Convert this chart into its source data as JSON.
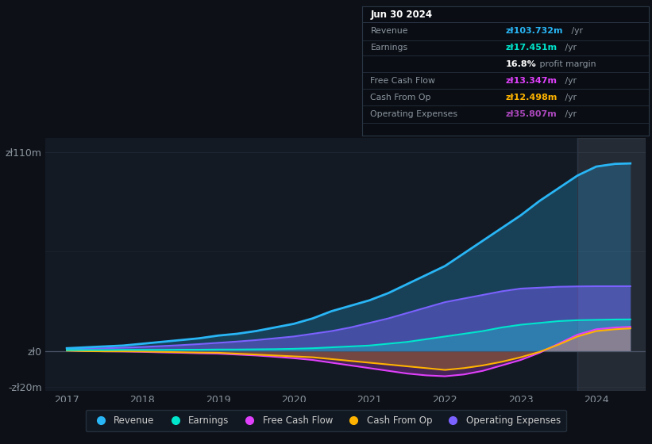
{
  "bg_color": "#0d1117",
  "plot_bg_color": "#131a24",
  "grid_color": "#1e2733",
  "title_box": {
    "date": "Jun 30 2024",
    "rows": [
      {
        "label": "Revenue",
        "value": "zł103.732m",
        "value_color": "#29b6f6",
        "suffix": " /yr"
      },
      {
        "label": "Earnings",
        "value": "zł17.451m",
        "value_color": "#00e5cc",
        "suffix": " /yr"
      },
      {
        "label": "",
        "value": "16.8%",
        "value_color": "#ffffff",
        "suffix": " profit margin"
      },
      {
        "label": "Free Cash Flow",
        "value": "zł13.347m",
        "value_color": "#e040fb",
        "suffix": " /yr"
      },
      {
        "label": "Cash From Op",
        "value": "zł12.498m",
        "value_color": "#ffb300",
        "suffix": " /yr"
      },
      {
        "label": "Operating Expenses",
        "value": "zł35.807m",
        "value_color": "#ab47bc",
        "suffix": " /yr"
      }
    ]
  },
  "x_years": [
    2017.0,
    2017.25,
    2017.5,
    2017.75,
    2018.0,
    2018.25,
    2018.5,
    2018.75,
    2019.0,
    2019.25,
    2019.5,
    2019.75,
    2020.0,
    2020.25,
    2020.5,
    2020.75,
    2021.0,
    2021.25,
    2021.5,
    2021.75,
    2022.0,
    2022.25,
    2022.5,
    2022.75,
    2023.0,
    2023.25,
    2023.5,
    2023.75,
    2024.0,
    2024.25,
    2024.45
  ],
  "revenue": [
    1.5,
    2.0,
    2.5,
    3.0,
    4.0,
    5.0,
    6.0,
    7.0,
    8.5,
    9.5,
    11.0,
    13.0,
    15.0,
    18.0,
    22.0,
    25.0,
    28.0,
    32.0,
    37.0,
    42.0,
    47.0,
    54.0,
    61.0,
    68.0,
    75.0,
    83.0,
    90.0,
    97.0,
    102.0,
    103.5,
    103.732
  ],
  "earnings": [
    0.5,
    0.5,
    0.5,
    0.6,
    0.6,
    0.6,
    0.7,
    0.7,
    0.8,
    0.8,
    0.9,
    1.0,
    1.2,
    1.5,
    2.0,
    2.5,
    3.0,
    4.0,
    5.0,
    6.5,
    8.0,
    9.5,
    11.0,
    13.0,
    14.5,
    15.5,
    16.5,
    17.0,
    17.2,
    17.4,
    17.451
  ],
  "free_cash_flow": [
    0.3,
    0.0,
    -0.2,
    -0.3,
    -0.5,
    -0.8,
    -1.0,
    -1.3,
    -1.5,
    -2.0,
    -2.5,
    -3.2,
    -4.0,
    -5.0,
    -6.5,
    -8.0,
    -9.5,
    -11.0,
    -12.5,
    -13.5,
    -14.0,
    -13.0,
    -11.0,
    -8.0,
    -5.0,
    -1.0,
    4.0,
    9.0,
    12.0,
    13.0,
    13.347
  ],
  "cash_from_op": [
    0.2,
    -0.1,
    -0.2,
    -0.2,
    -0.3,
    -0.5,
    -0.7,
    -0.9,
    -1.0,
    -1.5,
    -2.0,
    -2.5,
    -3.0,
    -3.5,
    -4.5,
    -5.5,
    -6.5,
    -7.5,
    -8.5,
    -9.5,
    -10.5,
    -9.5,
    -8.0,
    -6.0,
    -3.5,
    -0.5,
    3.5,
    8.0,
    11.0,
    12.0,
    12.498
  ],
  "op_expenses": [
    1.0,
    1.2,
    1.5,
    1.8,
    2.2,
    2.7,
    3.2,
    3.8,
    4.5,
    5.2,
    6.0,
    7.0,
    8.0,
    9.5,
    11.0,
    13.0,
    15.5,
    18.0,
    21.0,
    24.0,
    27.0,
    29.0,
    31.0,
    33.0,
    34.5,
    35.0,
    35.5,
    35.7,
    35.8,
    35.8,
    35.807
  ],
  "colors": {
    "revenue": "#29b6f6",
    "earnings": "#00e5cc",
    "free_cash_flow": "#e040fb",
    "cash_from_op": "#ffb300",
    "op_expenses": "#7b61ff"
  },
  "fill_alpha": {
    "revenue": 0.25,
    "earnings": 0.3,
    "free_cash_flow": 0.25,
    "cash_from_op": 0.25,
    "op_expenses": 0.45
  },
  "ylim": [
    -22,
    118
  ],
  "ytick_positions": [
    -20,
    0,
    110
  ],
  "ytick_labels": [
    "-zł20m",
    "zł0",
    "zł110m"
  ],
  "xlim": [
    2016.72,
    2024.65
  ],
  "xticks": [
    2017,
    2018,
    2019,
    2020,
    2021,
    2022,
    2023,
    2024
  ],
  "legend": [
    {
      "label": "Revenue",
      "color": "#29b6f6"
    },
    {
      "label": "Earnings",
      "color": "#00e5cc"
    },
    {
      "label": "Free Cash Flow",
      "color": "#e040fb"
    },
    {
      "label": "Cash From Op",
      "color": "#ffb300"
    },
    {
      "label": "Operating Expenses",
      "color": "#7b61ff"
    }
  ]
}
